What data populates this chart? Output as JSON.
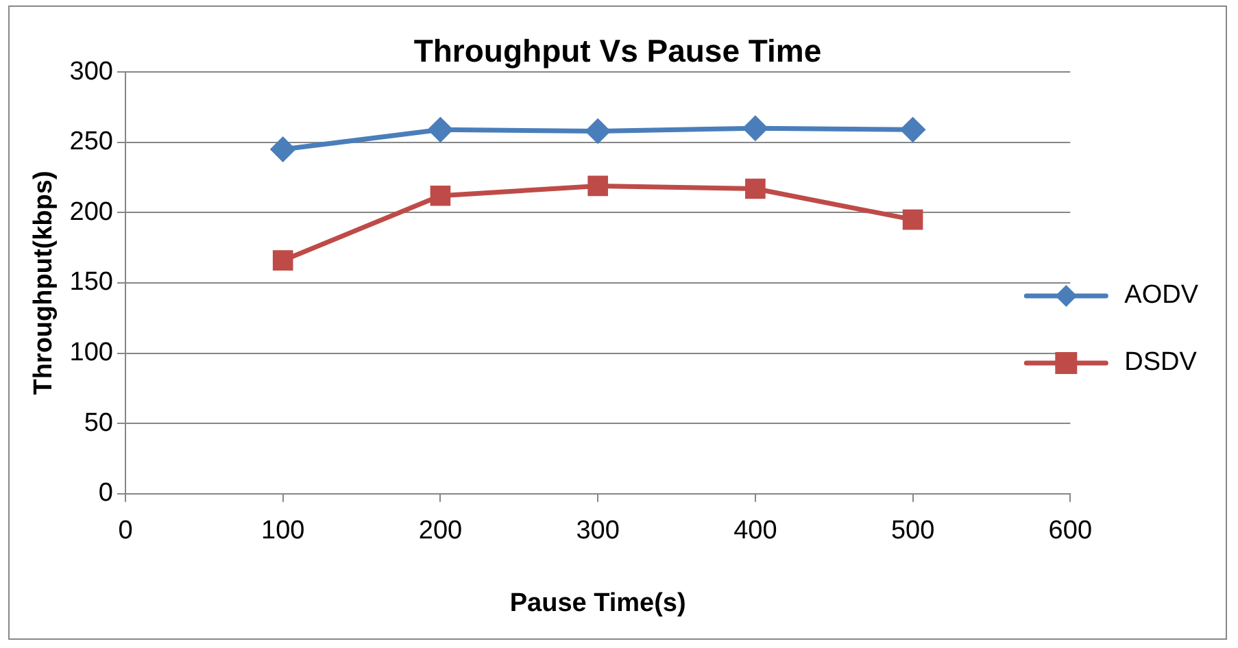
{
  "chart_data": {
    "type": "line",
    "title": "Throughput Vs Pause Time",
    "xlabel": "Pause Time(s)",
    "ylabel": "Throughput(kbps)",
    "x": [
      100,
      200,
      300,
      400,
      500
    ],
    "series": [
      {
        "name": "AODV",
        "color": "#4a7ebb",
        "marker": "diamond",
        "values": [
          245,
          259,
          258,
          260,
          259
        ]
      },
      {
        "name": "DSDV",
        "color": "#be4b48",
        "marker": "square",
        "values": [
          166,
          212,
          219,
          217,
          195
        ]
      }
    ],
    "xlim": [
      0,
      600
    ],
    "xticks": [
      0,
      100,
      200,
      300,
      400,
      500,
      600
    ],
    "ylim": [
      0,
      300
    ],
    "yticks": [
      0,
      50,
      100,
      150,
      200,
      250,
      300
    ],
    "grid": "y",
    "legend": "right",
    "line_style": "solid"
  }
}
